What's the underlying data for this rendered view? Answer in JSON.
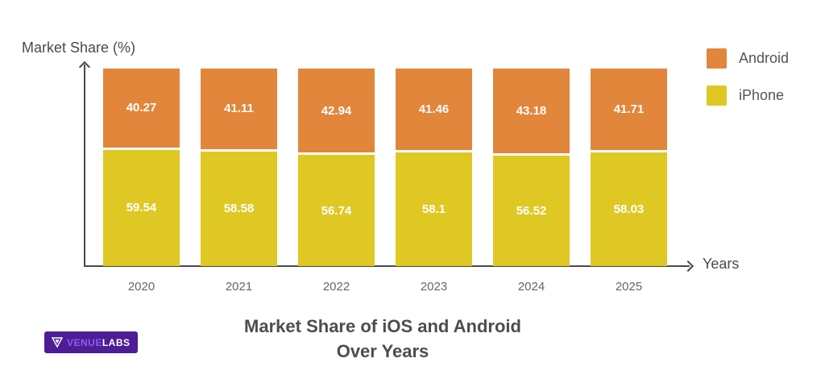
{
  "chart": {
    "y_axis_label": "Market Share (%)",
    "x_axis_label": "Years",
    "title_line1": "Market Share of iOS and Android",
    "title_line2": "Over Years"
  },
  "legend": [
    {
      "label": "Android",
      "color": "#e2863b"
    },
    {
      "label": "iPhone",
      "color": "#dfc823"
    }
  ],
  "chart_data": {
    "type": "bar",
    "stacked": true,
    "title": "Market Share of iOS and Android Over Years",
    "xlabel": "Years",
    "ylabel": "Market Share (%)",
    "categories": [
      "2020",
      "2021",
      "2022",
      "2023",
      "2024",
      "2025"
    ],
    "series": [
      {
        "name": "Android",
        "color": "#e2863b",
        "values": [
          40.27,
          41.11,
          42.94,
          41.46,
          43.18,
          41.71
        ]
      },
      {
        "name": "iPhone",
        "color": "#dfc823",
        "values": [
          59.54,
          58.58,
          56.74,
          58.1,
          56.52,
          58.03
        ]
      }
    ],
    "value_labels": true,
    "legend_position": "top-right",
    "grid": false,
    "ylim": [
      0,
      100
    ]
  },
  "branding": {
    "name_part1": "VENUE",
    "name_part2": "LABS"
  }
}
